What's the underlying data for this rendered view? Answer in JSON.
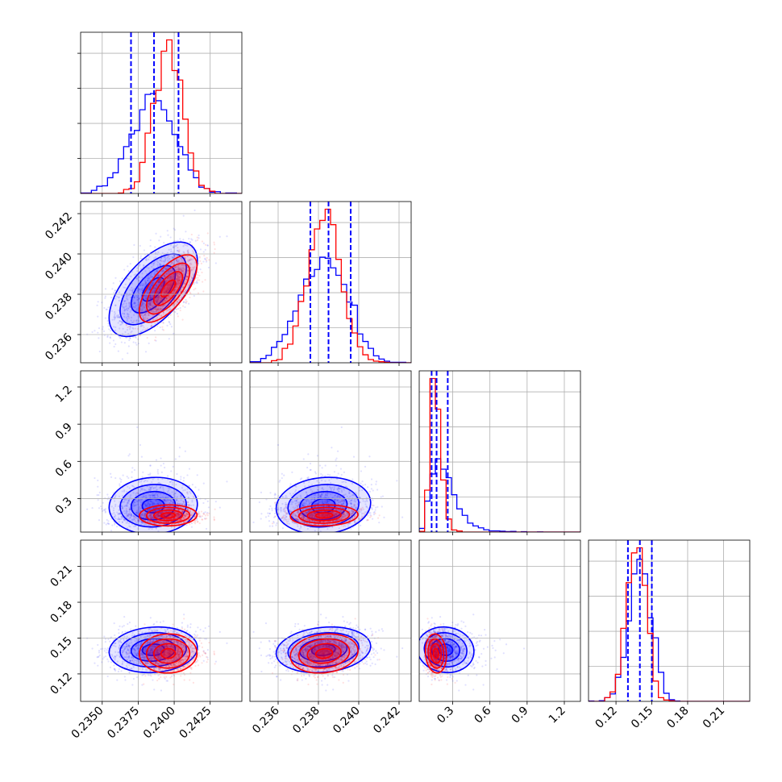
{
  "chart_data": {
    "type": "corner",
    "params": [
      {
        "id": "p1",
        "range": [
          0.2335,
          0.2447
        ],
        "ticks": [
          0.235,
          0.2375,
          0.24,
          0.2425
        ],
        "tick_labels": [
          "0.2350",
          "0.2375",
          "0.2400",
          "0.2425"
        ]
      },
      {
        "id": "p2",
        "range": [
          0.2346,
          0.2426
        ],
        "ticks": [
          0.236,
          0.238,
          0.24,
          0.242
        ],
        "tick_labels": [
          "0.236",
          "0.238",
          "0.240",
          "0.242"
        ]
      },
      {
        "id": "p3",
        "range": [
          0.03,
          1.33
        ],
        "ticks": [
          0.3,
          0.6,
          0.9,
          1.2
        ],
        "tick_labels": [
          "0.3",
          "0.6",
          "0.9",
          "1.2"
        ]
      },
      {
        "id": "p4",
        "range": [
          0.097,
          0.232
        ],
        "ticks": [
          0.12,
          0.15,
          0.18,
          0.21
        ],
        "tick_labels": [
          "0.12",
          "0.15",
          "0.18",
          "0.21"
        ]
      }
    ],
    "series": [
      {
        "color": "#0000ff",
        "means": [
          0.2386,
          0.2383,
          0.22,
          0.14
        ],
        "sds": [
          0.00155,
          0.00115,
          0.1,
          0.0095
        ],
        "quantiles": [
          [
            0.237,
            0.2386,
            0.2403
          ],
          [
            0.2376,
            0.2385,
            0.2396
          ],
          [
            0.13,
            0.17,
            0.26
          ],
          [
            0.13,
            0.14,
            0.15
          ]
        ]
      },
      {
        "color": "#ff0000",
        "means": [
          0.2396,
          0.2383,
          0.16,
          0.137
        ],
        "sds": [
          0.001,
          0.00085,
          0.04,
          0.008
        ],
        "quantiles": []
      }
    ],
    "grid": true,
    "quantile_lines": "dashed",
    "title": "",
    "xlabel": "",
    "ylabel": ""
  }
}
